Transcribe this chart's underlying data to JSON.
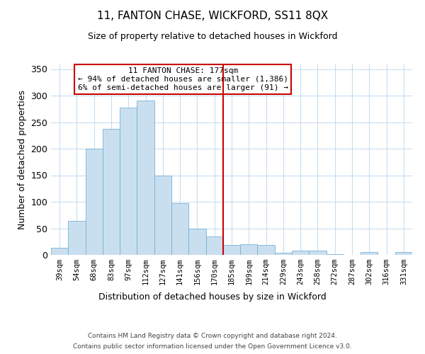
{
  "title": "11, FANTON CHASE, WICKFORD, SS11 8QX",
  "subtitle": "Size of property relative to detached houses in Wickford",
  "xlabel": "Distribution of detached houses by size in Wickford",
  "ylabel": "Number of detached properties",
  "bar_labels": [
    "39sqm",
    "54sqm",
    "68sqm",
    "83sqm",
    "97sqm",
    "112sqm",
    "127sqm",
    "141sqm",
    "156sqm",
    "170sqm",
    "185sqm",
    "199sqm",
    "214sqm",
    "229sqm",
    "243sqm",
    "258sqm",
    "272sqm",
    "287sqm",
    "302sqm",
    "316sqm",
    "331sqm"
  ],
  "bar_values": [
    13,
    64,
    200,
    237,
    278,
    291,
    150,
    98,
    49,
    35,
    19,
    20,
    19,
    4,
    8,
    8,
    2,
    0,
    5,
    0,
    5
  ],
  "bar_color": "#c9dff0",
  "bar_edge_color": "#7ab0d4",
  "ylim": [
    0,
    360
  ],
  "yticks": [
    0,
    50,
    100,
    150,
    200,
    250,
    300,
    350
  ],
  "vline_color": "#cc0000",
  "annotation_title": "11 FANTON CHASE: 177sqm",
  "annotation_line1": "← 94% of detached houses are smaller (1,386)",
  "annotation_line2": "6% of semi-detached houses are larger (91) →",
  "annotation_box_color": "#cc0000",
  "footer1": "Contains HM Land Registry data © Crown copyright and database right 2024.",
  "footer2": "Contains public sector information licensed under the Open Government Licence v3.0.",
  "background_color": "#ffffff",
  "grid_color": "#c8ddf0"
}
